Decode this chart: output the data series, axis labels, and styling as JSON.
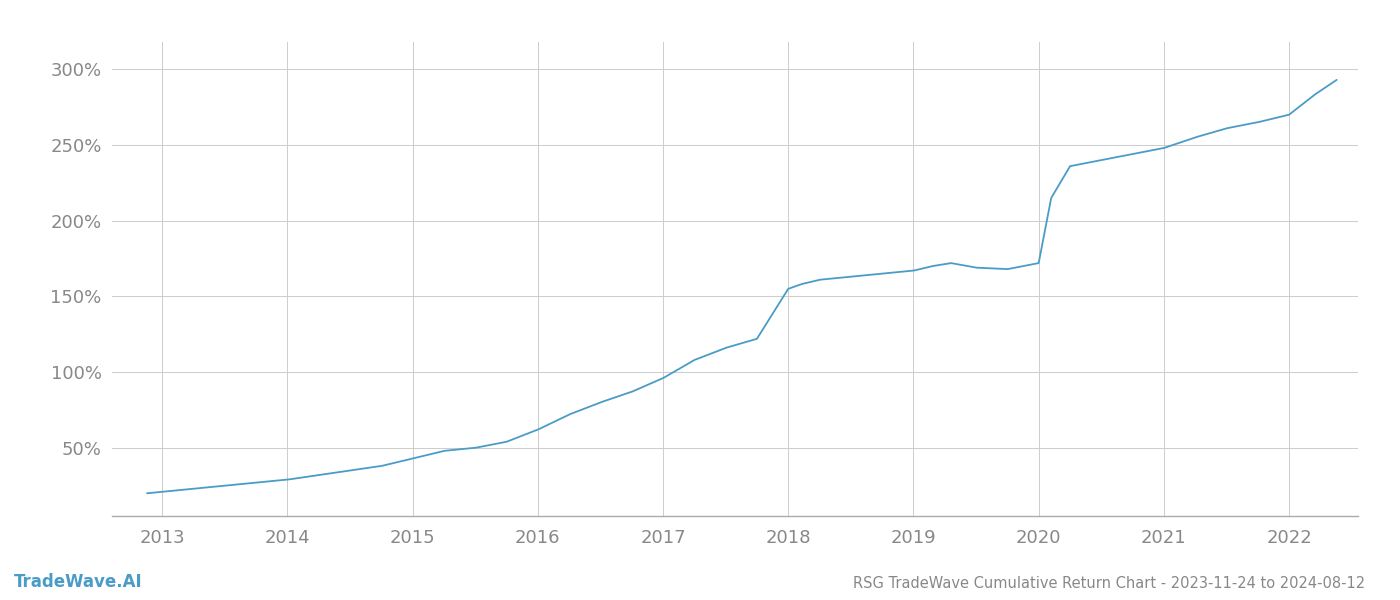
{
  "title": "RSG TradeWave Cumulative Return Chart - 2023-11-24 to 2024-08-12",
  "watermark": "TradeWave.AI",
  "line_color": "#4a9cc7",
  "background_color": "#ffffff",
  "grid_color": "#cccccc",
  "x_years": [
    2013,
    2014,
    2015,
    2016,
    2017,
    2018,
    2019,
    2020,
    2021,
    2022
  ],
  "y_ticks": [
    50,
    100,
    150,
    200,
    250,
    300
  ],
  "xlim_start": 2012.6,
  "xlim_end": 2022.55,
  "ylim_bottom": 5,
  "ylim_top": 318,
  "data_x": [
    2012.88,
    2013.0,
    2013.25,
    2013.5,
    2013.75,
    2014.0,
    2014.25,
    2014.5,
    2014.75,
    2015.0,
    2015.25,
    2015.5,
    2015.75,
    2016.0,
    2016.25,
    2016.5,
    2016.75,
    2017.0,
    2017.25,
    2017.5,
    2017.75,
    2018.0,
    2018.1,
    2018.25,
    2018.5,
    2018.75,
    2019.0,
    2019.15,
    2019.3,
    2019.5,
    2019.75,
    2020.0,
    2020.1,
    2020.25,
    2020.5,
    2020.75,
    2021.0,
    2021.25,
    2021.5,
    2021.75,
    2022.0,
    2022.2,
    2022.38
  ],
  "data_y": [
    20,
    21,
    23,
    25,
    27,
    29,
    32,
    35,
    38,
    43,
    48,
    50,
    54,
    62,
    72,
    80,
    87,
    96,
    108,
    116,
    122,
    155,
    158,
    161,
    163,
    165,
    167,
    170,
    172,
    169,
    168,
    172,
    215,
    236,
    240,
    244,
    248,
    255,
    261,
    265,
    270,
    283,
    293
  ]
}
